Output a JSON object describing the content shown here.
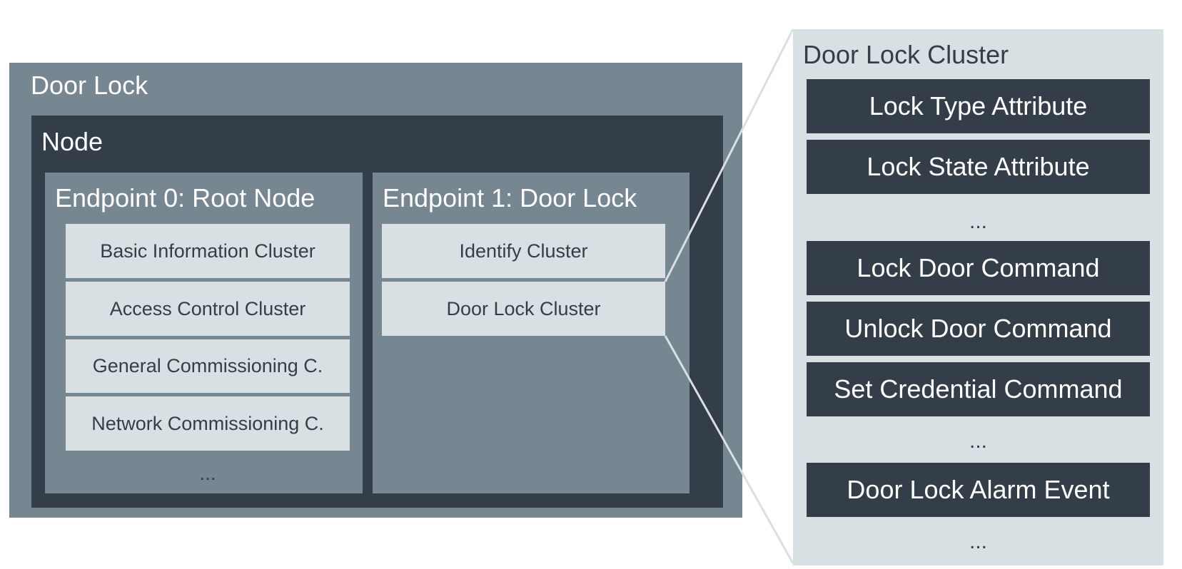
{
  "device": {
    "title": "Door Lock"
  },
  "node": {
    "title": "Node"
  },
  "endpoints": [
    {
      "title": "Endpoint 0: Root Node",
      "clusters": [
        "Basic Information Cluster",
        "Access Control Cluster",
        "General Commissioning C.",
        "Network Commissioning C."
      ],
      "more": "..."
    },
    {
      "title": "Endpoint 1: Door Lock",
      "clusters": [
        "Identify Cluster",
        "Door Lock Cluster"
      ]
    }
  ],
  "detail": {
    "title": "Door Lock Cluster",
    "attributes": [
      "Lock Type Attribute",
      "Lock State Attribute"
    ],
    "attributes_more": "...",
    "commands": [
      "Lock Door Command",
      "Unlock Door Command",
      "Set Credential Command"
    ],
    "commands_more": "...",
    "events": [
      "Door Lock Alarm Event"
    ],
    "events_more": "..."
  },
  "colors": {
    "slate": "#778792",
    "dark": "#333e48",
    "light": "#d9e0e3"
  }
}
